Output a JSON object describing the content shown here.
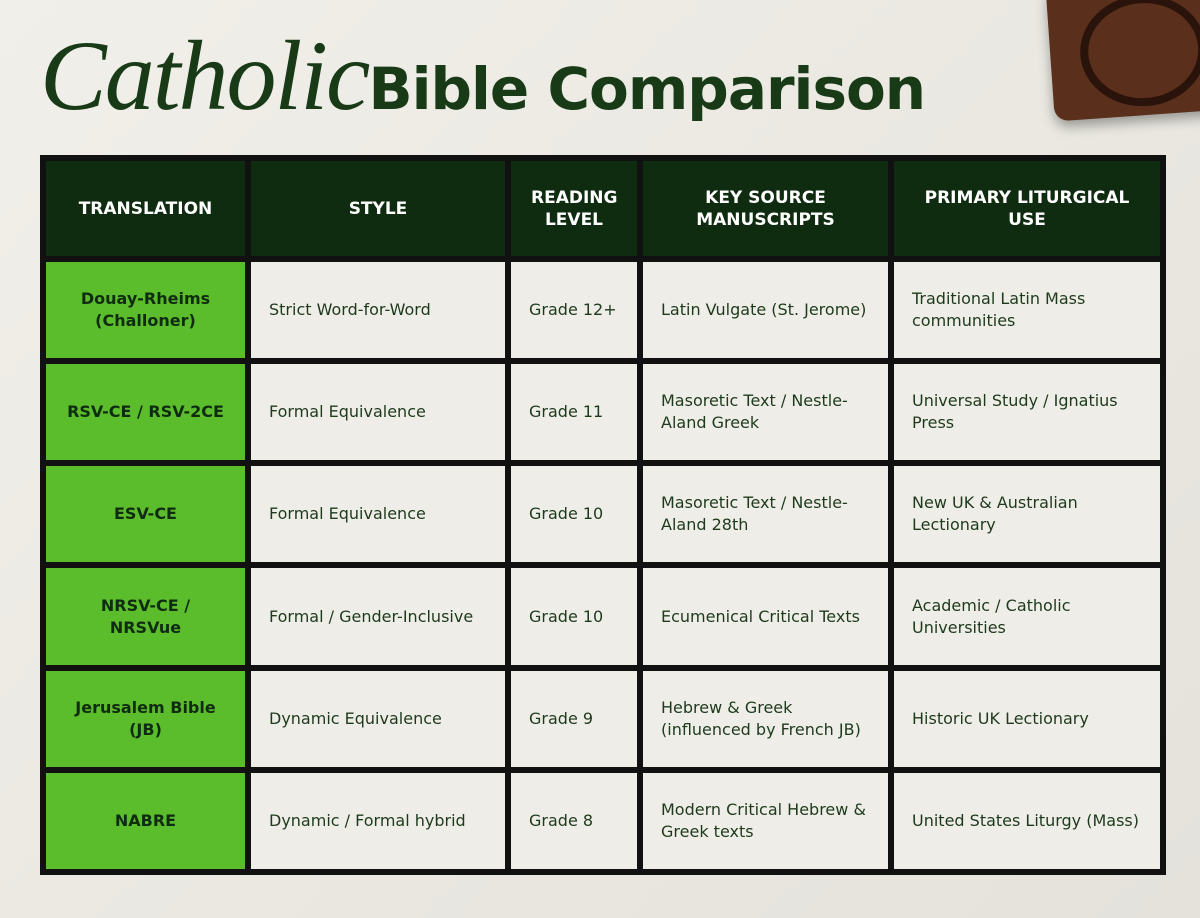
{
  "header": {
    "title_script": "Catholic",
    "title": "Bible Comparison"
  },
  "table": {
    "columns": [
      "TRANSLATION",
      "STYLE",
      "READING LEVEL",
      "KEY SOURCE MANUSCRIPTS",
      "PRIMARY LITURGICAL USE"
    ],
    "rows": [
      [
        "Douay-Rheims (Challoner)",
        "Strict Word-for-Word",
        "Grade 12+",
        "Latin Vulgate (St. Jerome)",
        "Traditional Latin Mass communities"
      ],
      [
        "RSV-CE / RSV-2CE",
        "Formal Equivalence",
        "Grade 11",
        "Masoretic Text / Nestle-Aland Greek",
        "Universal Study / Ignatius Press"
      ],
      [
        "ESV-CE",
        "Formal Equivalence",
        "Grade 10",
        "Masoretic Text / Nestle-Aland 28th",
        "New UK & Australian Lectionary"
      ],
      [
        "NRSV-CE / NRSVue",
        "Formal / Gender-Inclusive",
        "Grade 10",
        "Ecumenical Critical Texts",
        "Academic / Catholic Universities"
      ],
      [
        "Jerusalem Bible (JB)",
        "Dynamic Equivalence",
        "Grade 9",
        "Hebrew & Greek (influenced by French JB)",
        "Historic UK Lectionary"
      ],
      [
        "NABRE",
        "Dynamic / Formal hybrid",
        "Grade 8",
        "Modern Critical Hebrew & Greek texts",
        "United States Liturgy (Mass)"
      ]
    ]
  }
}
